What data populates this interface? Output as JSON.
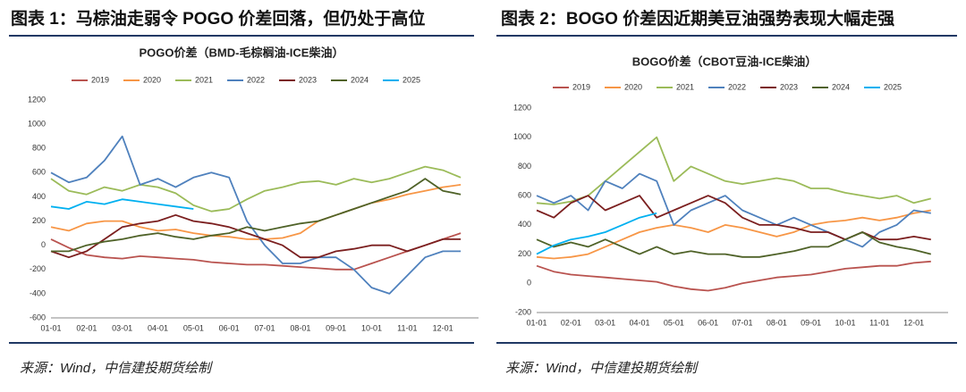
{
  "chart_data": [
    {
      "type": "line",
      "figure_title": "图表 1：马棕油走弱令 POGO 价差回落，但仍处于高位",
      "title": "POGO价差（BMD-毛棕榈油-ICE柴油）",
      "source": "来源：Wind，中信建投期货绘制",
      "categories": [
        "01-01",
        null,
        "02-01",
        null,
        "03-01",
        null,
        "04-01",
        null,
        "05-01",
        null,
        "06-01",
        null,
        "07-01",
        null,
        "08-01",
        null,
        "09-01",
        null,
        "10-01",
        null,
        "11-01",
        null,
        "12-01",
        null
      ],
      "ylim": [
        -600,
        1200
      ],
      "yticks": [
        -600,
        -400,
        -200,
        0,
        200,
        400,
        600,
        800,
        1000,
        1200
      ],
      "grid": false,
      "legend": "top",
      "series": [
        {
          "name": "2019",
          "color": "#b9534f",
          "values": [
            50,
            -20,
            -80,
            -100,
            -110,
            -90,
            -100,
            -110,
            -120,
            -140,
            -150,
            -160,
            -160,
            -170,
            -180,
            -190,
            -200,
            -200,
            -150,
            -100,
            -50,
            0,
            50,
            100
          ]
        },
        {
          "name": "2020",
          "color": "#f79646",
          "values": [
            150,
            120,
            180,
            200,
            200,
            150,
            120,
            130,
            100,
            80,
            70,
            50,
            50,
            60,
            100,
            200,
            250,
            300,
            350,
            380,
            420,
            450,
            480,
            500
          ]
        },
        {
          "name": "2021",
          "color": "#9bbb59",
          "values": [
            550,
            450,
            420,
            480,
            450,
            500,
            480,
            430,
            330,
            280,
            300,
            380,
            450,
            480,
            520,
            530,
            500,
            550,
            520,
            550,
            600,
            650,
            620,
            560
          ]
        },
        {
          "name": "2022",
          "color": "#4f81bd",
          "values": [
            600,
            520,
            560,
            700,
            900,
            500,
            550,
            480,
            560,
            600,
            560,
            200,
            0,
            -150,
            -150,
            -100,
            -100,
            -200,
            -350,
            -400,
            -250,
            -100,
            -50,
            -50
          ]
        },
        {
          "name": "2023",
          "color": "#7b1f1f",
          "values": [
            -50,
            -100,
            -50,
            50,
            150,
            180,
            200,
            250,
            200,
            180,
            150,
            100,
            50,
            0,
            -100,
            -100,
            -50,
            -30,
            0,
            0,
            -50,
            0,
            50,
            50
          ]
        },
        {
          "name": "2024",
          "color": "#4f6228",
          "values": [
            -50,
            -50,
            0,
            30,
            50,
            80,
            100,
            70,
            50,
            80,
            100,
            150,
            120,
            150,
            180,
            200,
            250,
            300,
            350,
            400,
            450,
            550,
            450,
            420
          ]
        },
        {
          "name": "2025",
          "color": "#00b0f0",
          "values": [
            320,
            300,
            360,
            340,
            380,
            360,
            340,
            320,
            300,
            null,
            null,
            null,
            null,
            null,
            null,
            null,
            null,
            null,
            null,
            null,
            null,
            null,
            null,
            null
          ]
        }
      ]
    },
    {
      "type": "line",
      "figure_title": "图表 2：BOGO 价差因近期美豆油强势表现大幅走强",
      "title": "BOGO价差（CBOT豆油-ICE柴油）",
      "source": "来源：Wind，中信建投期货绘制",
      "categories": [
        "01-01",
        null,
        "02-01",
        null,
        "03-01",
        null,
        "04-01",
        null,
        "05-01",
        null,
        "06-01",
        null,
        "07-01",
        null,
        "08-01",
        null,
        "09-01",
        null,
        "10-01",
        null,
        "11-01",
        null,
        "12-01",
        null
      ],
      "ylim": [
        -200,
        1200
      ],
      "yticks": [
        -200,
        0,
        200,
        400,
        600,
        800,
        1000,
        1200
      ],
      "grid": false,
      "legend": "top",
      "series": [
        {
          "name": "2019",
          "color": "#b9534f",
          "values": [
            120,
            80,
            60,
            50,
            40,
            30,
            20,
            10,
            -20,
            -40,
            -50,
            -30,
            0,
            20,
            40,
            50,
            60,
            80,
            100,
            110,
            120,
            120,
            140,
            150
          ]
        },
        {
          "name": "2020",
          "color": "#f79646",
          "values": [
            180,
            170,
            180,
            200,
            250,
            300,
            350,
            380,
            400,
            380,
            350,
            400,
            380,
            350,
            320,
            350,
            400,
            420,
            430,
            450,
            430,
            450,
            480,
            500
          ]
        },
        {
          "name": "2021",
          "color": "#9bbb59",
          "values": [
            550,
            540,
            560,
            600,
            700,
            800,
            900,
            1000,
            700,
            800,
            750,
            700,
            680,
            700,
            720,
            700,
            650,
            650,
            620,
            600,
            580,
            600,
            550,
            580
          ]
        },
        {
          "name": "2022",
          "color": "#4f81bd",
          "values": [
            600,
            550,
            600,
            500,
            700,
            650,
            750,
            700,
            400,
            500,
            550,
            600,
            500,
            450,
            400,
            450,
            400,
            350,
            300,
            250,
            350,
            400,
            500,
            480
          ]
        },
        {
          "name": "2023",
          "color": "#7b1f1f",
          "values": [
            500,
            450,
            550,
            600,
            500,
            550,
            600,
            450,
            500,
            550,
            600,
            550,
            450,
            400,
            400,
            380,
            350,
            350,
            300,
            350,
            300,
            300,
            320,
            300
          ]
        },
        {
          "name": "2024",
          "color": "#4f6228",
          "values": [
            300,
            250,
            280,
            250,
            300,
            250,
            200,
            250,
            200,
            220,
            200,
            200,
            180,
            180,
            200,
            220,
            250,
            250,
            300,
            350,
            280,
            250,
            230,
            200
          ]
        },
        {
          "name": "2025",
          "color": "#00b0f0",
          "values": [
            200,
            260,
            300,
            320,
            350,
            400,
            450,
            480,
            null,
            null,
            null,
            null,
            null,
            null,
            null,
            null,
            null,
            null,
            null,
            null,
            null,
            null,
            null,
            null
          ]
        }
      ]
    }
  ]
}
